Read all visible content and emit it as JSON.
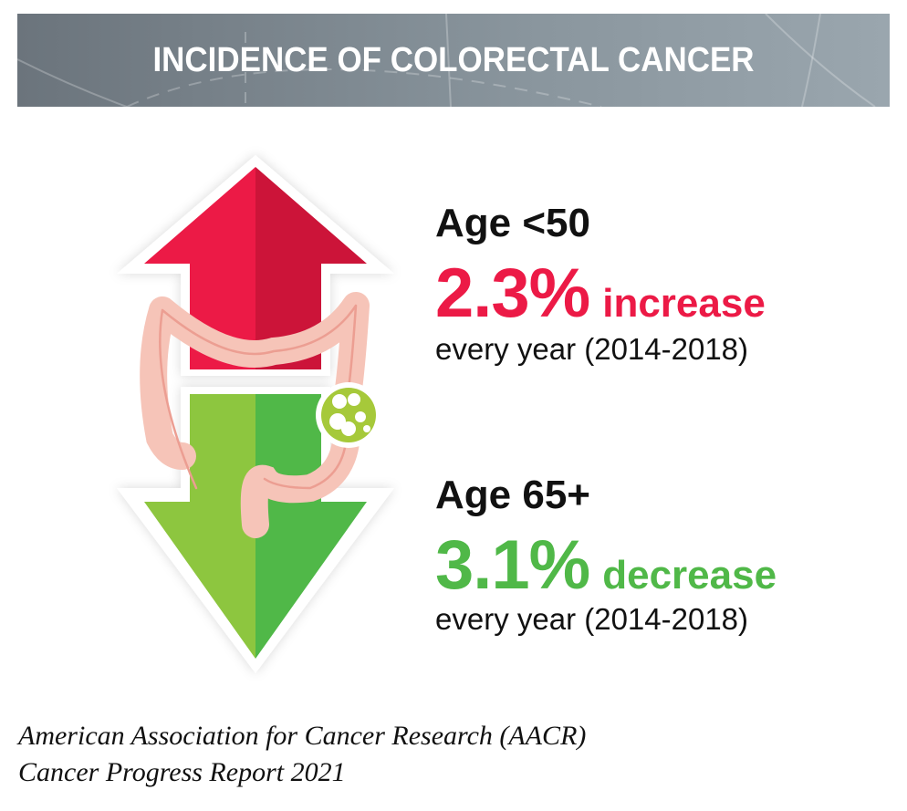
{
  "header": {
    "title": "INCIDENCE OF COLORECTAL CANCER"
  },
  "stats": [
    {
      "age": "Age <50",
      "percent": "2.3%",
      "direction": "increase",
      "period": "every year (2014-2018)",
      "color": "#ec1a46"
    },
    {
      "age": "Age 65+",
      "percent": "3.1%",
      "direction": "decrease",
      "period": "every year (2014-2018)",
      "color": "#50b848"
    }
  ],
  "source": {
    "line1": "American Association for Cancer Research (AACR)",
    "line2": "Cancer Progress Report 2021"
  }
}
